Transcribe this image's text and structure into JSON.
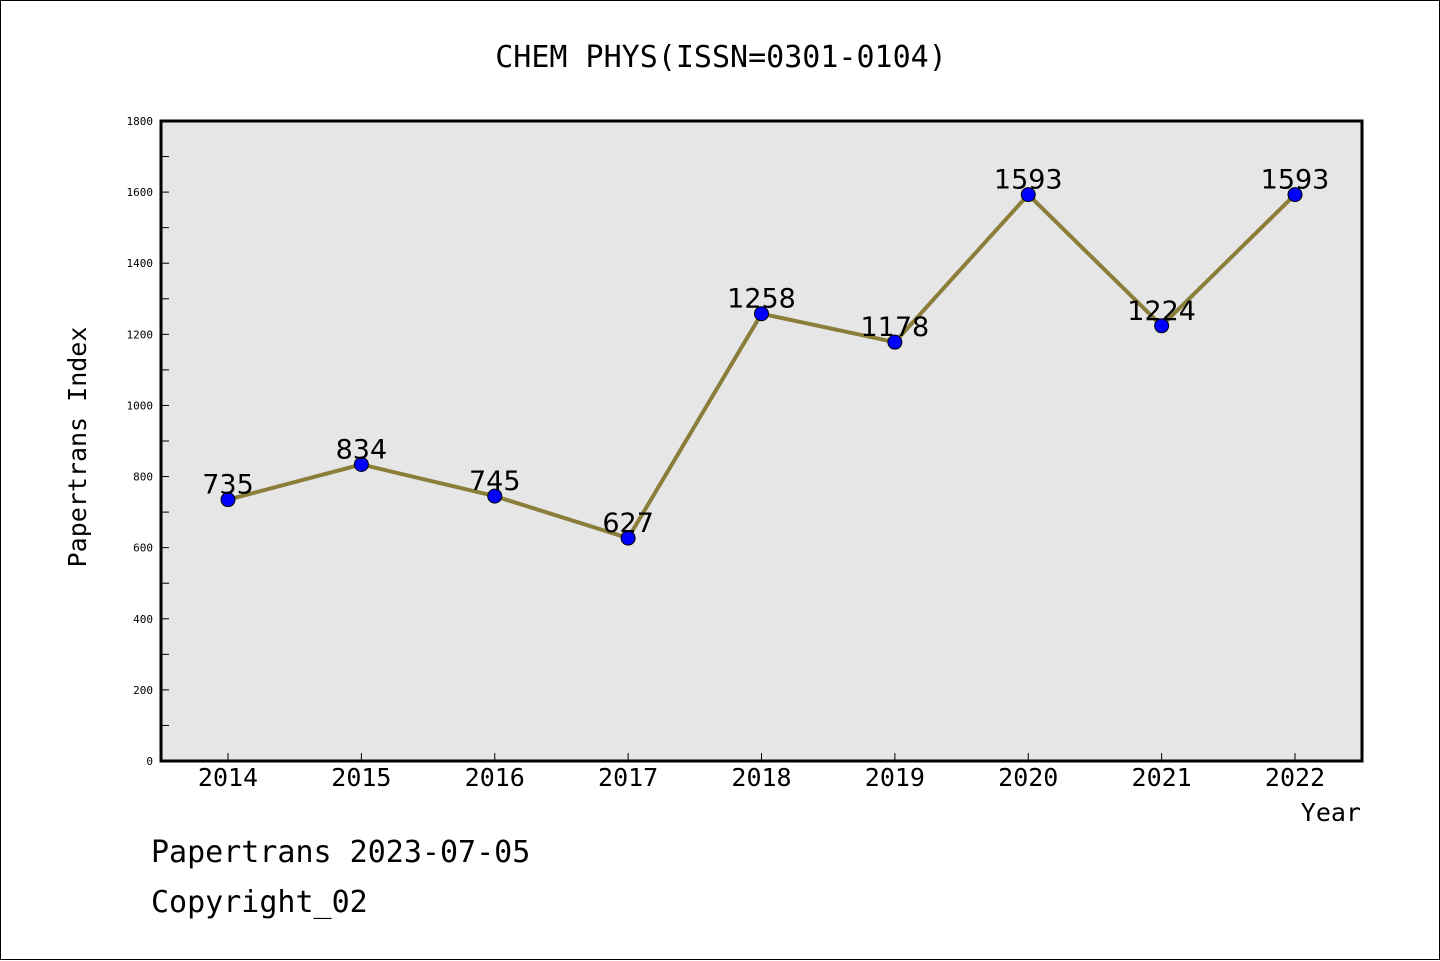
{
  "chart_data": {
    "type": "line",
    "title": "CHEM PHYS(ISSN=0301-0104)",
    "xlabel": "Year",
    "ylabel": "Papertrans Index",
    "x": [
      "2014",
      "2015",
      "2016",
      "2017",
      "2018",
      "2019",
      "2020",
      "2021",
      "2022"
    ],
    "series": [
      {
        "values": [
          735,
          834,
          745,
          627,
          1258,
          1178,
          1593,
          1224,
          1593
        ]
      }
    ],
    "ylim": [
      0,
      1800
    ],
    "yticks": [
      0,
      200,
      400,
      600,
      800,
      1000,
      1200,
      1400,
      1600,
      1800
    ],
    "grid": false,
    "colors": {
      "line": "#8b7d3a",
      "marker": "#0000ff",
      "plot_bg": "#e6e6e6"
    }
  },
  "footer": {
    "date_line": "Papertrans 2023-07-05",
    "copyright": "Copyright_02"
  }
}
